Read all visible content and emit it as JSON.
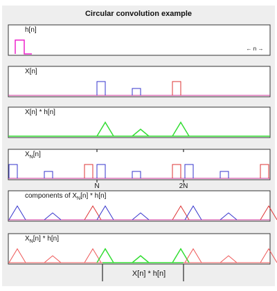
{
  "title": "Circular convolution example",
  "panels": [
    {
      "label": "h[n]",
      "axis_note": "← n →"
    },
    {
      "label": "X[n]"
    },
    {
      "label": "X[n] * h[n]"
    },
    {
      "label": {
        "base": "X",
        "sub": "N",
        "rest": "[n]"
      },
      "markers": [
        "N",
        "2N"
      ]
    },
    {
      "label": {
        "base": "components of X",
        "sub": "N",
        "rest": "[n] * h[n]"
      }
    },
    {
      "label": {
        "base": "X",
        "sub": "N",
        "rest": "[n] * h[n]"
      }
    }
  ],
  "footer": "X[n] * h[n]"
}
